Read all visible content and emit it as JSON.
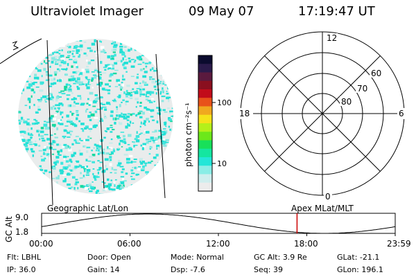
{
  "header": {
    "instrument": "Ultraviolet Imager",
    "date": "09 May 07",
    "time": "17:19:47 UT"
  },
  "colorbar": {
    "unit_label": "photon cm⁻²s⁻¹",
    "ticks": [
      "100",
      "10"
    ],
    "colors": [
      "#0b0b2e",
      "#2a1a4a",
      "#5a1a3e",
      "#8a0f1f",
      "#c20c1a",
      "#e8521a",
      "#f0a81f",
      "#f5e21a",
      "#b5f01a",
      "#6ce81a",
      "#18e05a",
      "#14e6a0",
      "#23e6d8",
      "#8aede6",
      "#cfeeee",
      "#ececec"
    ]
  },
  "polar": {
    "mlt_labels": {
      "top": "12",
      "left": "18",
      "right": "6",
      "bottom": "0"
    },
    "lat_labels": [
      "60",
      "70",
      "80"
    ]
  },
  "timeline": {
    "left_title": "Geographic Lat/Lon",
    "right_title": "Apex MLat/MLT",
    "y_axis_label": "GC Alt",
    "y_ticks": [
      "9.0",
      "1.8"
    ],
    "x_ticks": [
      "00:00",
      "06:00",
      "12:00",
      "18:00",
      "23:59"
    ],
    "current_time_fraction": 0.7224
  },
  "status": {
    "row1": [
      {
        "label": "Flt:",
        "value": "LBHL"
      },
      {
        "label": "Door:",
        "value": "Open"
      },
      {
        "label": "Mode:",
        "value": "Normal"
      },
      {
        "label": "GC Alt:",
        "value": "3.9 Re"
      },
      {
        "label": "GLat:",
        "value": "-21.1"
      }
    ],
    "row2": [
      {
        "label": "IP:",
        "value": "36.0"
      },
      {
        "label": "Gain:",
        "value": "14"
      },
      {
        "label": "Dsp:",
        "value": "-7.6"
      },
      {
        "label": "Seq:",
        "value": "39"
      },
      {
        "label": "GLon:",
        "value": "196.1"
      }
    ]
  },
  "accent": {
    "current_time_marker": "#cc0000",
    "imager_fill": "#e6e6e6"
  }
}
